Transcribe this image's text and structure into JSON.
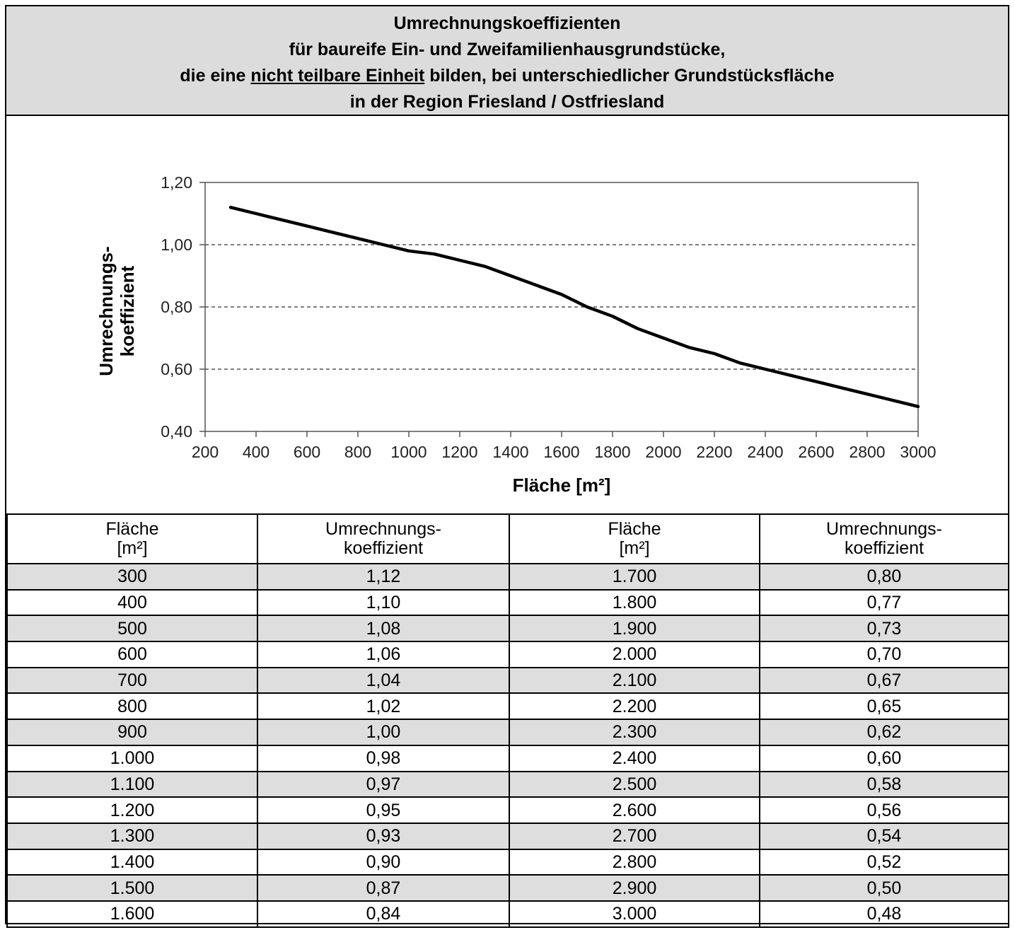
{
  "header": {
    "line1": "Umrechnungskoeffizienten",
    "line2": "für baureife Ein- und Zweifamilienhausgrundstücke,",
    "line3_pre": "die eine ",
    "line3_ul": "nicht teilbare Einheit",
    "line3_post": " bilden, bei unterschiedlicher Grundstücksfläche",
    "line4": "in der Region Friesland / Ostfriesland"
  },
  "chart_data": {
    "type": "line",
    "xlabel": "Fläche [m²]",
    "ylabel_line1": "Umrechnungs-",
    "ylabel_line2": "koeffizient",
    "xlim": [
      200,
      3000
    ],
    "ylim": [
      0.4,
      1.2
    ],
    "x_ticks": [
      200,
      400,
      600,
      800,
      1000,
      1200,
      1400,
      1600,
      1800,
      2000,
      2200,
      2400,
      2600,
      2800,
      3000
    ],
    "x_tick_labels": [
      "200",
      "400",
      "600",
      "800",
      "1000",
      "1200",
      "1400",
      "1600",
      "1800",
      "2000",
      "2200",
      "2400",
      "2600",
      "2800",
      "3000"
    ],
    "y_ticks": [
      0.4,
      0.6,
      0.8,
      1.0,
      1.2
    ],
    "y_tick_labels": [
      "0,40",
      "0,60",
      "0,80",
      "1,00",
      "1,20"
    ],
    "gridlines": "horizontal dashed at 0,60 / 0,80 / 1,00",
    "legend": "none",
    "line_color": "#000000",
    "series": [
      {
        "x": [
          300,
          400,
          500,
          600,
          700,
          800,
          900,
          1000,
          1100,
          1200,
          1300,
          1400,
          1500,
          1600,
          1700,
          1800,
          1900,
          2000,
          2100,
          2200,
          2300,
          2400,
          2500,
          2600,
          2700,
          2800,
          2900,
          3000
        ],
        "y": [
          1.12,
          1.1,
          1.08,
          1.06,
          1.04,
          1.02,
          1.0,
          0.98,
          0.97,
          0.95,
          0.93,
          0.9,
          0.87,
          0.84,
          0.8,
          0.77,
          0.73,
          0.7,
          0.67,
          0.65,
          0.62,
          0.6,
          0.58,
          0.56,
          0.54,
          0.52,
          0.5,
          0.48
        ]
      }
    ]
  },
  "table": {
    "headers": [
      [
        "Fläche",
        "[m²]"
      ],
      [
        "Umrechnungs-",
        "koeffizient"
      ],
      [
        "Fläche",
        "[m²]"
      ],
      [
        "Umrechnungs-",
        "koeffizient"
      ]
    ],
    "rows": [
      [
        "300",
        "1,12",
        "1.700",
        "0,80"
      ],
      [
        "400",
        "1,10",
        "1.800",
        "0,77"
      ],
      [
        "500",
        "1,08",
        "1.900",
        "0,73"
      ],
      [
        "600",
        "1,06",
        "2.000",
        "0,70"
      ],
      [
        "700",
        "1,04",
        "2.100",
        "0,67"
      ],
      [
        "800",
        "1,02",
        "2.200",
        "0,65"
      ],
      [
        "900",
        "1,00",
        "2.300",
        "0,62"
      ],
      [
        "1.000",
        "0,98",
        "2.400",
        "0,60"
      ],
      [
        "1.100",
        "0,97",
        "2.500",
        "0,58"
      ],
      [
        "1.200",
        "0,95",
        "2.600",
        "0,56"
      ],
      [
        "1.300",
        "0,93",
        "2.700",
        "0,54"
      ],
      [
        "1.400",
        "0,90",
        "2.800",
        "0,52"
      ],
      [
        "1.500",
        "0,87",
        "2.900",
        "0,50"
      ],
      [
        "1.600",
        "0,84",
        "3.000",
        "0,48"
      ]
    ]
  }
}
